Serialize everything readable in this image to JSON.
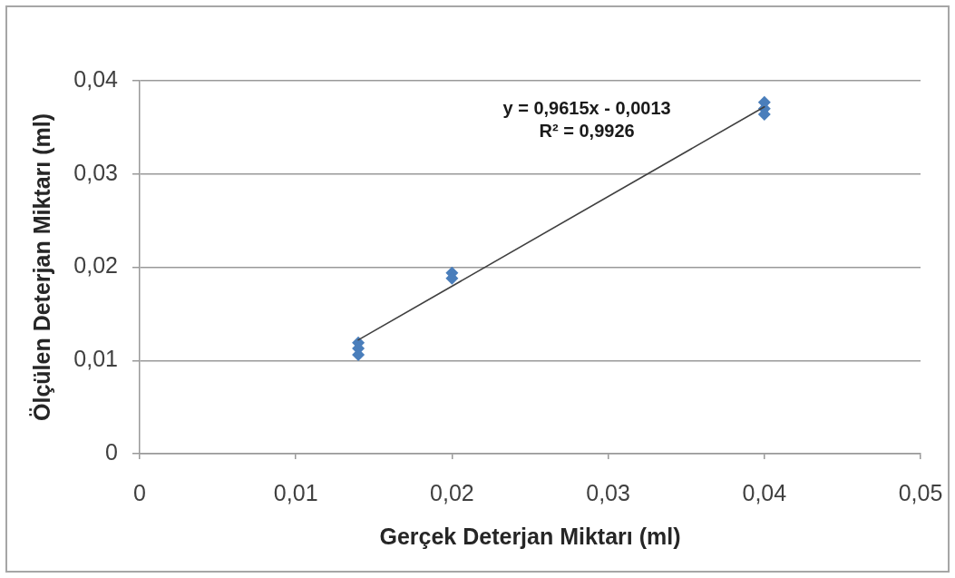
{
  "chart_data": {
    "type": "scatter",
    "xlabel": "Gerçek Deterjan Miktarı (ml)",
    "ylabel": "Ölçülen Deterjan Miktarı (ml)",
    "series": [
      {
        "color": "#4a7ebb",
        "marker": "diamond",
        "x": [
          0.014,
          0.014,
          0.014,
          0.02,
          0.02,
          0.04,
          0.04,
          0.04
        ],
        "values": [
          0.0119,
          0.0113,
          0.0106,
          0.0194,
          0.0188,
          0.0377,
          0.037,
          0.0364
        ]
      },
      {
        "type": "line",
        "color": "#404040",
        "marker": "none",
        "x": [
          0.014,
          0.04
        ],
        "values": [
          0.0122,
          0.0372
        ]
      }
    ],
    "xlim": [
      0,
      0.05
    ],
    "xticks": [
      0,
      {
        "value": 0.01,
        "label": "0,01"
      },
      {
        "value": 0.02,
        "label": "0,02"
      },
      {
        "value": 0.03,
        "label": "0,03"
      },
      {
        "value": 0.04,
        "label": "0,04"
      },
      {
        "value": 0.05,
        "label": "0,05"
      }
    ],
    "ylim": [
      0,
      0.04
    ],
    "yticks": [
      0,
      {
        "value": 0.01,
        "label": "0,01"
      },
      {
        "value": 0.02,
        "label": "0,02"
      },
      {
        "value": 0.03,
        "label": "0,03"
      },
      {
        "value": 0.04,
        "label": "0,04"
      }
    ],
    "grid": "y",
    "annotations": [
      "y = 0,9615x - 0,0013",
      "R² = 0,9926"
    ]
  }
}
